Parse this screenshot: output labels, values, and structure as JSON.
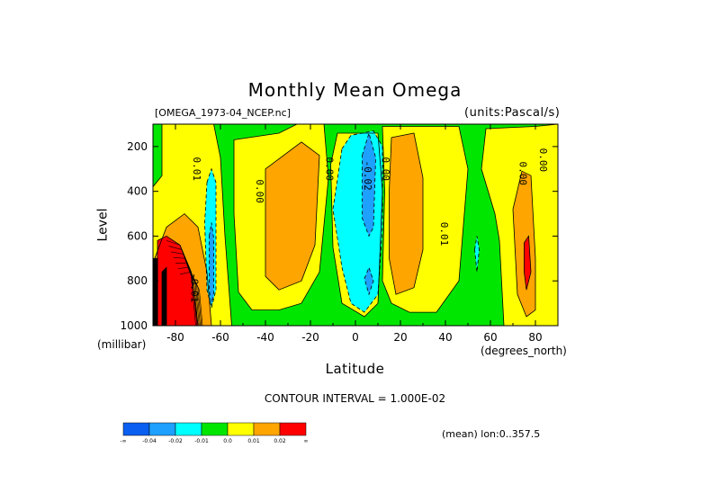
{
  "chart_data": {
    "type": "contour",
    "title": "Monthly Mean Omega",
    "file_label": "[OMEGA_1973-04_NCEP.nc]",
    "units_label": "(units:Pascal/s)",
    "xlabel": "Latitude",
    "x_unit_label": "(degrees_north)",
    "ylabel": "Level",
    "y_unit_label": "(millibar)",
    "xlim": [
      -90,
      90
    ],
    "ylim": [
      1000,
      100
    ],
    "x_ticks": [
      -80,
      -60,
      -40,
      -20,
      0,
      20,
      40,
      60,
      80
    ],
    "x_tick_labels": [
      "-80",
      "-60",
      "-40",
      "-20",
      "0",
      "20",
      "40",
      "60",
      "80"
    ],
    "y_ticks": [
      200,
      400,
      600,
      800,
      1000
    ],
    "y_tick_labels": [
      "200",
      "400",
      "600",
      "800",
      "1000"
    ],
    "contour_interval_text": "CONTOUR INTERVAL = 1.000E-02",
    "mean_text": "(mean) lon:0..357.5",
    "colorbar": {
      "colors": [
        "#0a5ff0",
        "#1ea0ff",
        "#00ffff",
        "#00e600",
        "#ffff00",
        "#ffa500",
        "#ff0000"
      ],
      "labels": [
        "-∞",
        "-0.04",
        "-0.02",
        "-0.01",
        "0.0",
        "0.01",
        "0.02",
        "∞"
      ]
    },
    "contour_labels": [
      {
        "text": "0.01",
        "lat": -72,
        "lev": 300
      },
      {
        "text": "0.00",
        "lat": -44,
        "lev": 400
      },
      {
        "text": "0.00",
        "lat": -13,
        "lev": 300
      },
      {
        "text": "-0.02",
        "lat": 4,
        "lev": 330
      },
      {
        "text": "0.00",
        "lat": 12,
        "lev": 300
      },
      {
        "text": "0.01",
        "lat": 38,
        "lev": 590
      },
      {
        "text": "0.00",
        "lat": 73,
        "lev": 320
      },
      {
        "text": "0.00",
        "lat": 82,
        "lev": 260
      },
      {
        "text": "-0.01",
        "lat": -73,
        "lev": 830
      }
    ],
    "regions": [
      {
        "color": "#00e600",
        "pts": [
          [
            -90,
            100
          ],
          [
            90,
            100
          ],
          [
            90,
            1000
          ],
          [
            -90,
            1000
          ]
        ]
      },
      {
        "color": "#ffff00",
        "pts": [
          [
            -84,
            100
          ],
          [
            -63,
            100
          ],
          [
            -60,
            250
          ],
          [
            -58,
            600
          ],
          [
            -55,
            1000
          ],
          [
            -90,
            1000
          ],
          [
            -90,
            380
          ],
          [
            -86,
            330
          ],
          [
            -86,
            100
          ]
        ]
      },
      {
        "color": "#ffff00",
        "pts": [
          [
            -54,
            170
          ],
          [
            -34,
            140
          ],
          [
            -26,
            100
          ],
          [
            -14,
            100
          ],
          [
            -12,
            340
          ],
          [
            -16,
            760
          ],
          [
            -24,
            900
          ],
          [
            -34,
            930
          ],
          [
            -46,
            930
          ],
          [
            -52,
            850
          ],
          [
            -54,
            500
          ]
        ]
      },
      {
        "color": "#ffff00",
        "pts": [
          [
            -8,
            140
          ],
          [
            10,
            140
          ],
          [
            12,
            400
          ],
          [
            10,
            900
          ],
          [
            4,
            960
          ],
          [
            -6,
            900
          ],
          [
            -10,
            650
          ],
          [
            -11,
            280
          ]
        ]
      },
      {
        "color": "#ffff00",
        "pts": [
          [
            12,
            110
          ],
          [
            46,
            110
          ],
          [
            50,
            300
          ],
          [
            46,
            800
          ],
          [
            36,
            940
          ],
          [
            24,
            940
          ],
          [
            16,
            900
          ],
          [
            12,
            800
          ],
          [
            13,
            400
          ]
        ]
      },
      {
        "color": "#ffff00",
        "pts": [
          [
            58,
            120
          ],
          [
            80,
            110
          ],
          [
            90,
            100
          ],
          [
            90,
            1000
          ],
          [
            66,
            1000
          ],
          [
            64,
            620
          ],
          [
            62,
            500
          ],
          [
            56,
            300
          ]
        ]
      },
      {
        "color": "#ffa500",
        "pts": [
          [
            -90,
            720
          ],
          [
            -84,
            560
          ],
          [
            -76,
            500
          ],
          [
            -70,
            560
          ],
          [
            -66,
            760
          ],
          [
            -64,
            1000
          ],
          [
            -90,
            1000
          ]
        ]
      },
      {
        "color": "#ffa500",
        "pts": [
          [
            -40,
            300
          ],
          [
            -24,
            180
          ],
          [
            -16,
            240
          ],
          [
            -18,
            640
          ],
          [
            -24,
            800
          ],
          [
            -34,
            840
          ],
          [
            -40,
            780
          ]
        ]
      },
      {
        "color": "#ffa500",
        "pts": [
          [
            16,
            160
          ],
          [
            26,
            140
          ],
          [
            30,
            340
          ],
          [
            30,
            660
          ],
          [
            26,
            830
          ],
          [
            18,
            860
          ],
          [
            15,
            700
          ],
          [
            15,
            400
          ]
        ]
      },
      {
        "color": "#ffa500",
        "pts": [
          [
            70,
            480
          ],
          [
            74,
            310
          ],
          [
            78,
            330
          ],
          [
            80,
            700
          ],
          [
            80,
            930
          ],
          [
            76,
            960
          ],
          [
            72,
            860
          ]
        ]
      },
      {
        "color": "#ff0000",
        "pts": [
          [
            -88,
            620
          ],
          [
            -84,
            600
          ],
          [
            -78,
            640
          ],
          [
            -73,
            760
          ],
          [
            -70,
            1000
          ],
          [
            -88,
            1000
          ]
        ]
      },
      {
        "color": "#ff0000",
        "pts": [
          [
            75,
            630
          ],
          [
            77,
            600
          ],
          [
            78,
            760
          ],
          [
            76,
            840
          ],
          [
            75,
            760
          ]
        ]
      },
      {
        "color": "#000000",
        "pts": [
          [
            -90,
            700
          ],
          [
            -88,
            700
          ],
          [
            -88,
            1000
          ],
          [
            -90,
            1000
          ]
        ]
      },
      {
        "color": "#000000",
        "pts": [
          [
            -86,
            760
          ],
          [
            -84,
            740
          ],
          [
            -84,
            1000
          ],
          [
            -86,
            1000
          ]
        ]
      },
      {
        "color": "#00ffff",
        "pts": [
          [
            -66,
            360
          ],
          [
            -64,
            300
          ],
          [
            -62,
            360
          ],
          [
            -62,
            840
          ],
          [
            -64,
            920
          ],
          [
            -66,
            840
          ],
          [
            -67,
            540
          ]
        ]
      },
      {
        "color": "#00ffff",
        "pts": [
          [
            -6,
            210
          ],
          [
            -2,
            150
          ],
          [
            8,
            130
          ],
          [
            12,
            200
          ],
          [
            12,
            560
          ],
          [
            10,
            860
          ],
          [
            4,
            940
          ],
          [
            -2,
            900
          ],
          [
            -6,
            740
          ],
          [
            -10,
            480
          ]
        ]
      },
      {
        "color": "#1ea0ff",
        "pts": [
          [
            3,
            240
          ],
          [
            6,
            140
          ],
          [
            9,
            250
          ],
          [
            8,
            560
          ],
          [
            6,
            600
          ],
          [
            3,
            520
          ]
        ]
      },
      {
        "color": "#1ea0ff",
        "pts": [
          [
            -65,
            600
          ],
          [
            -64,
            540
          ],
          [
            -63,
            610
          ],
          [
            -63,
            860
          ],
          [
            -64,
            910
          ],
          [
            -65,
            840
          ]
        ]
      },
      {
        "color": "#1ea0ff",
        "pts": [
          [
            4,
            790
          ],
          [
            6,
            740
          ],
          [
            8,
            800
          ],
          [
            6,
            860
          ]
        ]
      },
      {
        "color": "#00ffff",
        "pts": [
          [
            53,
            660
          ],
          [
            54,
            600
          ],
          [
            55,
            660
          ],
          [
            54,
            760
          ]
        ]
      }
    ]
  }
}
